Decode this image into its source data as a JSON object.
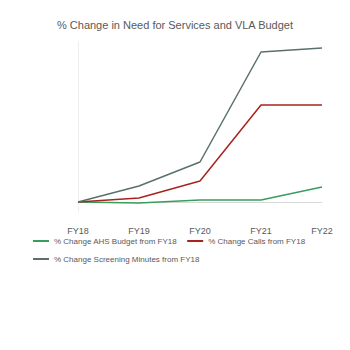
{
  "chart_data": {
    "type": "line",
    "title": "% Change in Need for Services and VLA Budget",
    "categories": [
      "FY18",
      "FY19",
      "FY20",
      "FY21",
      "FY22"
    ],
    "series": [
      {
        "name": "% Change AHS Budget from FY18",
        "color": "#3a9d5d",
        "values": [
          0,
          -1,
          2,
          2,
          15
        ]
      },
      {
        "name": "% Change Calls from FY18",
        "color": "#a8231f",
        "values": [
          0,
          4,
          21,
          97,
          97
        ]
      },
      {
        "name": "% Change Screening Minutes from FY18",
        "color": "#5b6f6f",
        "values": [
          0,
          16,
          40,
          150,
          154
        ]
      }
    ],
    "ylim": [
      -10,
      160
    ],
    "tick_labels": "x",
    "grid": false,
    "legend": "bottom-left"
  }
}
